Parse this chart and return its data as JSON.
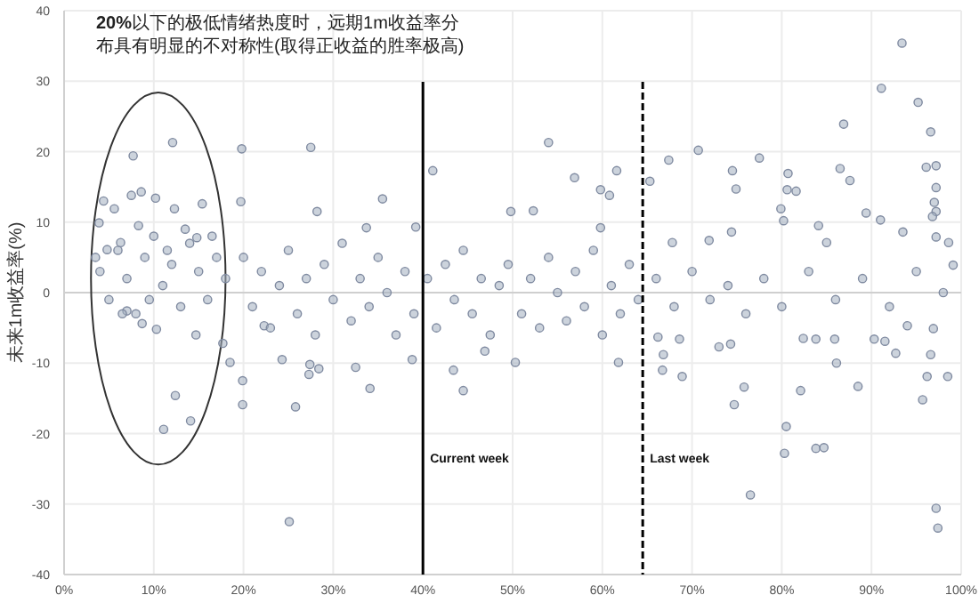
{
  "chart_data": {
    "type": "scatter",
    "title": "**20%**以下的极低情绪热度时，远期1m收益率分布具有明显的不对称性(取得正收益的胜率极高)",
    "ylabel": "未来1m收益率(%)",
    "color": "#a3aec0",
    "marker": "circle",
    "grid": true,
    "xlim": [
      0,
      100
    ],
    "ylim": [
      -40,
      40
    ],
    "xticks": [
      {
        "value": 0,
        "label": "0%"
      },
      {
        "value": 10,
        "label": "10%"
      },
      {
        "value": 20,
        "label": "20%"
      },
      {
        "value": 30,
        "label": "30%"
      },
      {
        "value": 40,
        "label": "40%"
      },
      {
        "value": 50,
        "label": "50%"
      },
      {
        "value": 60,
        "label": "60%"
      },
      {
        "value": 70,
        "label": "70%"
      },
      {
        "value": 80,
        "label": "80%"
      },
      {
        "value": 90,
        "label": "90%"
      },
      {
        "value": 100,
        "label": "100%"
      }
    ],
    "yticks": [
      -40,
      -30,
      -20,
      -10,
      0,
      10,
      20,
      30,
      40
    ],
    "ref_lines": [
      {
        "axis": "x",
        "value": 40,
        "label": "Current week",
        "line_style": "solid",
        "color": "#000000"
      },
      {
        "axis": "x",
        "value": 64.5,
        "label": "Last week",
        "line_style": "dashed",
        "color": "#000000"
      }
    ],
    "x": [
      3.9,
      4.4,
      4.8,
      5.6,
      6.3,
      7.7,
      7.5,
      8.6,
      8.3,
      10.2,
      12.1,
      12.3,
      14.8,
      15.4,
      19.8,
      19.7,
      27.5,
      28.2,
      33.7,
      35.5,
      39.2,
      41.1,
      54.0,
      56.9,
      52.3,
      49.8,
      61.6,
      59.8,
      60.8,
      59.8,
      65.3,
      67.4,
      70.7,
      74.5,
      74.9,
      77.5,
      80.7,
      80.6,
      81.6,
      79.9,
      80.2,
      86.9,
      86.5,
      87.6,
      91.1,
      93.4,
      95.2,
      96.6,
      96.1,
      97.2,
      97.2,
      97.0,
      97.2,
      96.8,
      89.4,
      91.0,
      93.5,
      84.1,
      85.0,
      74.4,
      71.9,
      67.8,
      98.6,
      99.1,
      97.2,
      10.3,
      11.1,
      12.4,
      14.1,
      19.9,
      19.9,
      25.8,
      25.1,
      18.5,
      34.1,
      24.3,
      27.3,
      27.4,
      28.4,
      32.5,
      38.8,
      43.4,
      44.5,
      46.9,
      7.0,
      8.7,
      14.7,
      17.7,
      22.3,
      50.3,
      61.8,
      66.7,
      68.9,
      75.8,
      74.7,
      80.5,
      80.3,
      83.8,
      84.7,
      82.1,
      86.1,
      88.5,
      76.5,
      97.2,
      97.4,
      95.7,
      96.2,
      98.5,
      96.6,
      92.7,
      96.9,
      94.0,
      90.3,
      91.5,
      85.9,
      83.8,
      82.4,
      74.3,
      73.0,
      68.6,
      66.8,
      66.2,
      20,
      21,
      22,
      23,
      24,
      25,
      26,
      27,
      28,
      29,
      30,
      31,
      32,
      33,
      34,
      35,
      36,
      37,
      38,
      39,
      40.5,
      41.5,
      42.5,
      43.5,
      44.5,
      45.5,
      46.5,
      47.5,
      48.5,
      49.5,
      51,
      52,
      53,
      54,
      55,
      56,
      57,
      58,
      59,
      60,
      61,
      62,
      63,
      64,
      66,
      68,
      70,
      72,
      74,
      76,
      78,
      80,
      83,
      86,
      89,
      92,
      95,
      98,
      4,
      5,
      6,
      7,
      8,
      9,
      10,
      11,
      12,
      13,
      14,
      15,
      16,
      17,
      18,
      3.5,
      6.5,
      9.5,
      11.5,
      13.5,
      16.5
    ],
    "values": [
      9.9,
      13.0,
      6.1,
      11.9,
      7.1,
      19.4,
      13.8,
      14.3,
      9.5,
      13.4,
      21.3,
      11.9,
      7.8,
      12.6,
      20.4,
      12.9,
      20.6,
      11.5,
      9.2,
      13.3,
      9.3,
      17.3,
      21.3,
      16.3,
      11.6,
      11.5,
      17.3,
      14.6,
      13.8,
      9.2,
      15.8,
      18.8,
      20.2,
      17.3,
      14.7,
      19.1,
      16.9,
      14.6,
      14.4,
      11.9,
      10.2,
      23.9,
      17.6,
      15.9,
      29.0,
      35.4,
      27.0,
      22.8,
      17.8,
      18.0,
      14.9,
      12.8,
      11.5,
      10.8,
      11.3,
      10.3,
      8.6,
      9.5,
      7.1,
      8.6,
      7.4,
      7.1,
      7.1,
      3.9,
      7.9,
      -5.2,
      -19.4,
      -14.6,
      -18.2,
      -12.5,
      -15.9,
      -16.2,
      -32.5,
      -9.9,
      -13.6,
      -9.5,
      -11.6,
      -10.2,
      -10.8,
      -10.6,
      -9.5,
      -11.0,
      -13.9,
      -8.3,
      -2.6,
      -4.4,
      -6.0,
      -7.2,
      -4.7,
      -9.9,
      -9.9,
      -11.0,
      -11.9,
      -13.4,
      -15.9,
      -19.0,
      -22.8,
      -22.1,
      -22.0,
      -13.9,
      -10.0,
      -13.3,
      -28.7,
      -30.6,
      -33.4,
      -15.2,
      -11.9,
      -11.9,
      -8.8,
      -8.6,
      -5.1,
      -4.7,
      -6.6,
      -6.9,
      -6.6,
      -6.6,
      -6.5,
      -7.3,
      -7.7,
      -6.6,
      -8.8,
      -6.3,
      5,
      -2,
      3,
      -5,
      1,
      6,
      -3,
      2,
      -6,
      4,
      -1,
      7,
      -4,
      2,
      -2,
      5,
      0,
      -6,
      3,
      -3,
      2,
      -5,
      4,
      -1,
      6,
      -3,
      2,
      -6,
      1,
      4,
      -3,
      2,
      -5,
      5,
      0,
      -4,
      3,
      -2,
      6,
      -6,
      1,
      -3,
      4,
      -1,
      2,
      -2,
      3,
      -1,
      1,
      -3,
      2,
      -2,
      3,
      -1,
      2,
      -2,
      3,
      0,
      3,
      -1,
      6,
      2,
      -3,
      5,
      8,
      1,
      4,
      -2,
      7,
      3,
      -1,
      5,
      2,
      5,
      -3,
      -1,
      6,
      9,
      8
    ]
  }
}
